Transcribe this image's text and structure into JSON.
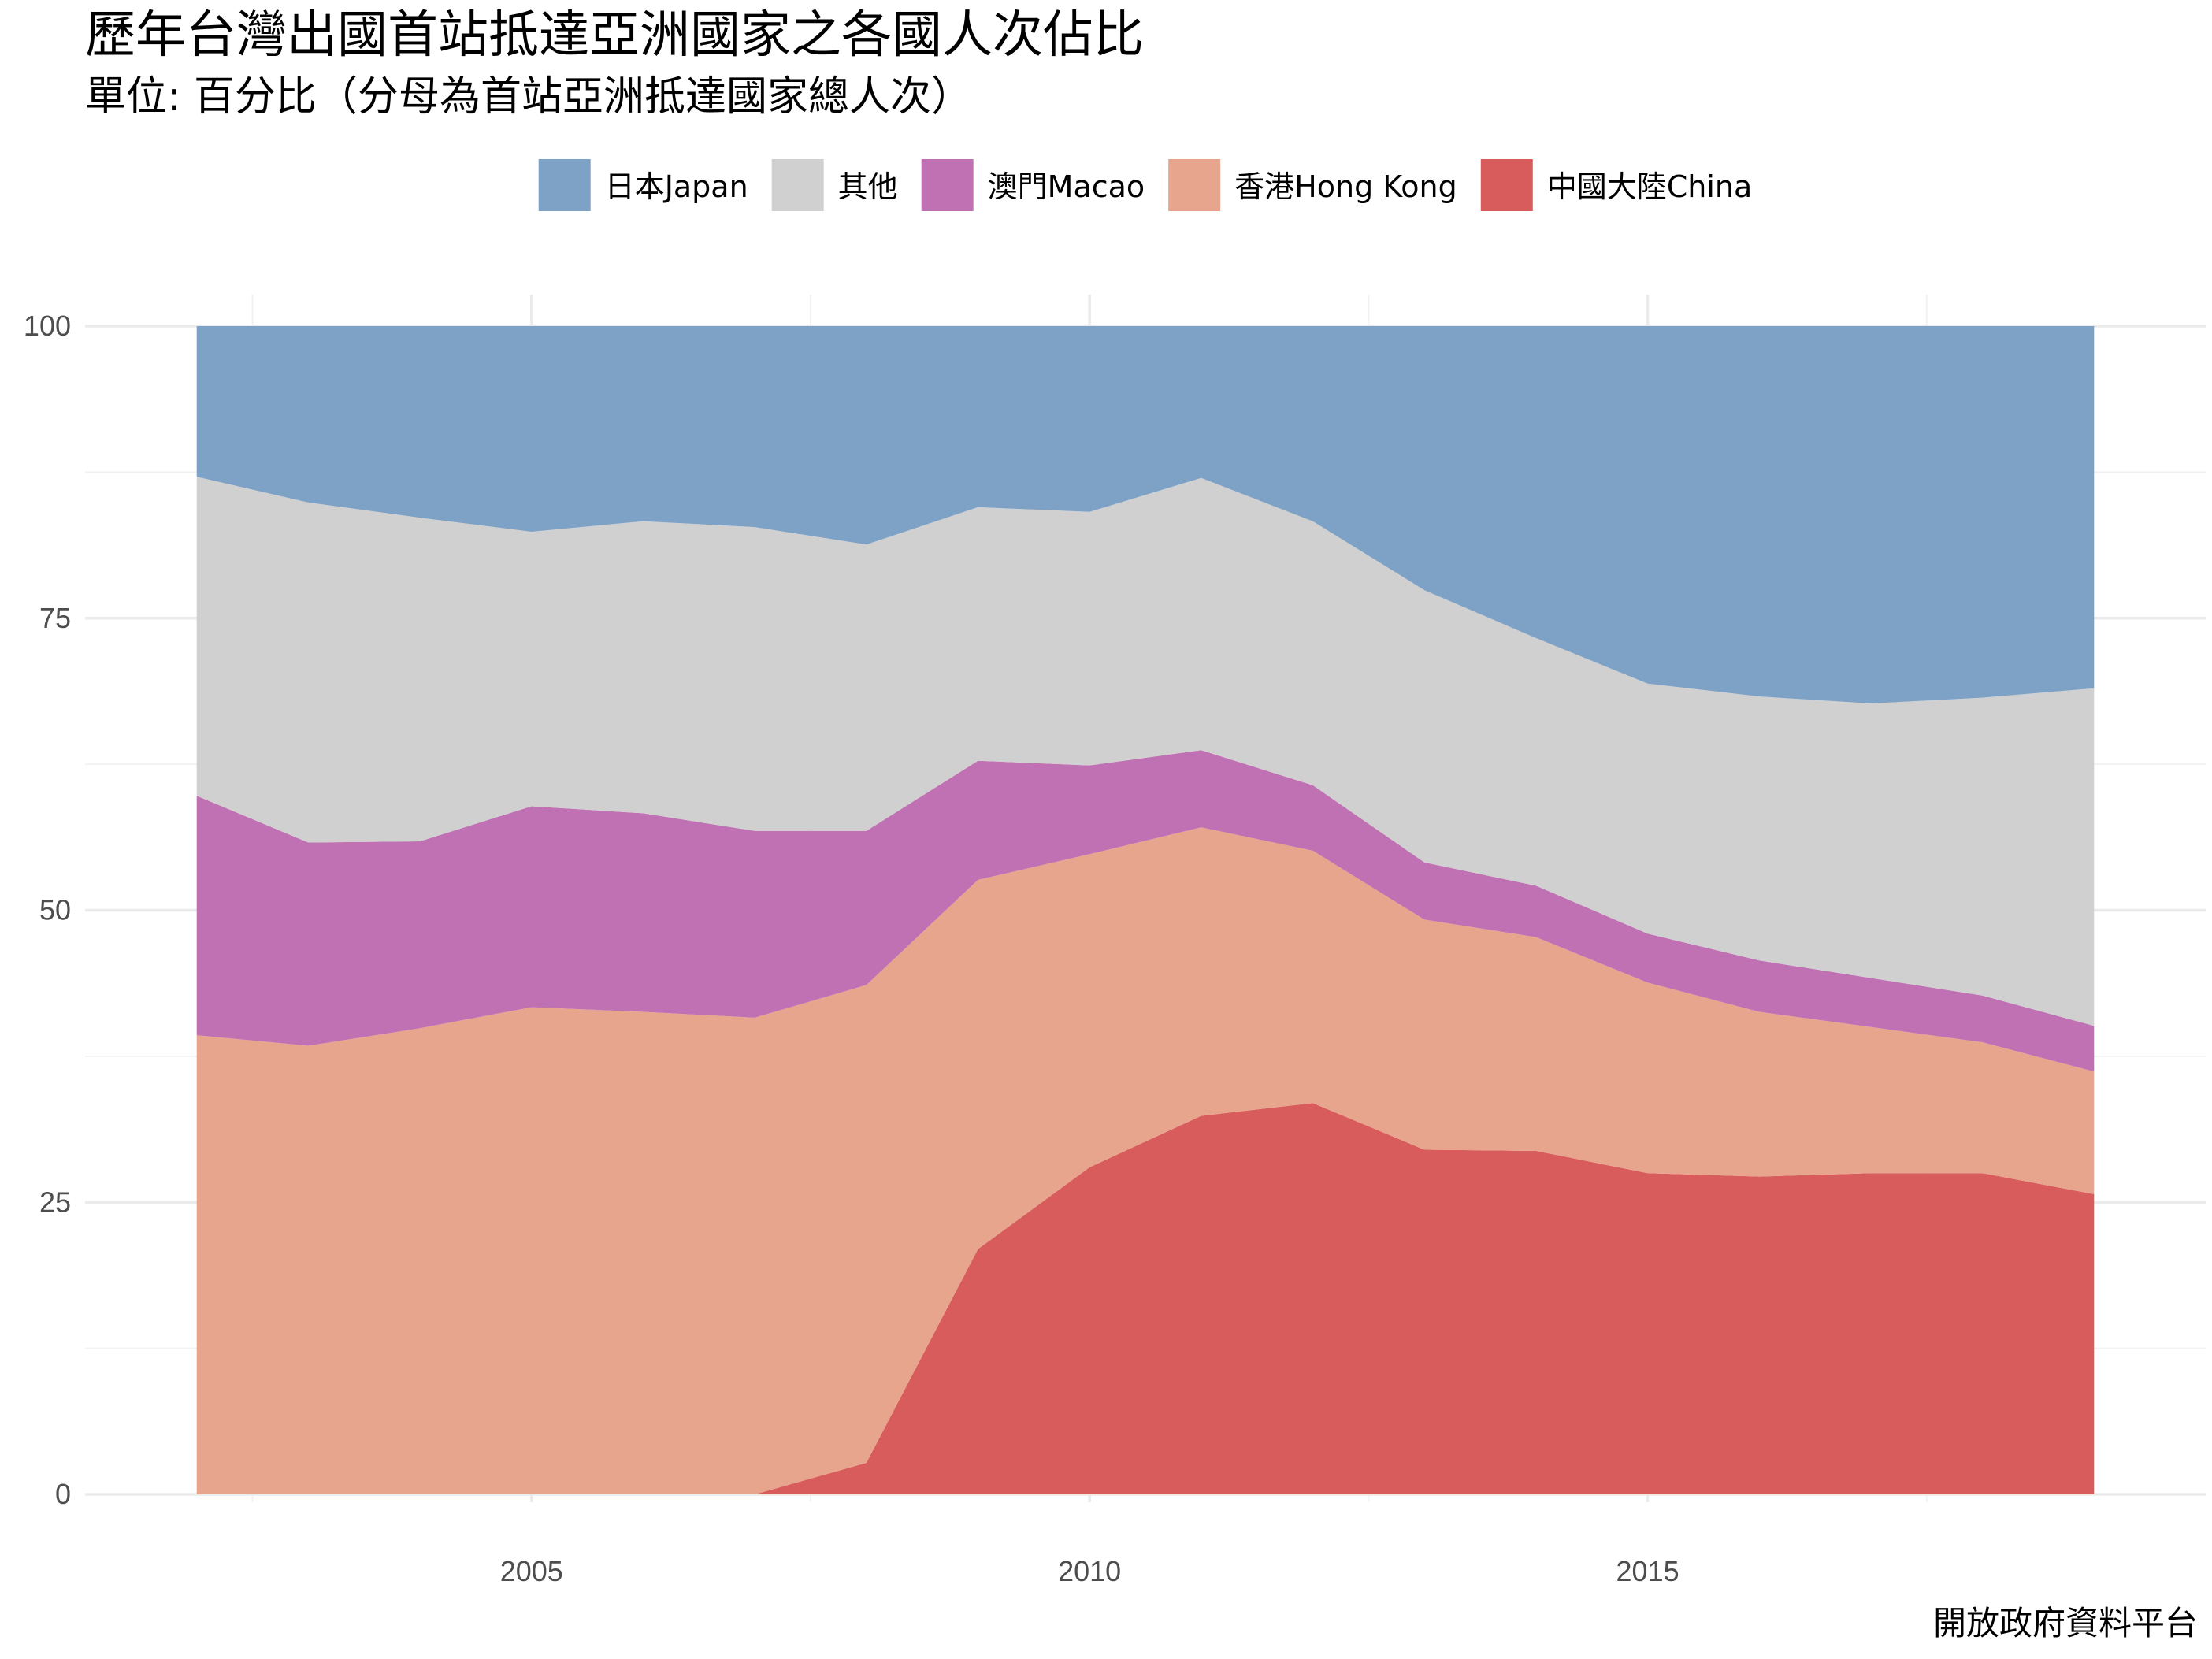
{
  "title": "歷年台灣出國首站抵達亞洲國家之各國人次佔比",
  "subtitle": "單位: 百分比（分母為首站亞洲抵達國家總人次）",
  "caption": "開放政府資料平台",
  "legend": [
    {
      "key": "japan",
      "label": "日本Japan",
      "color": "#7EA1C6"
    },
    {
      "key": "other",
      "label": "其他",
      "color": "#D0D0D0"
    },
    {
      "key": "macao",
      "label": "澳門Macao",
      "color": "#C071B3"
    },
    {
      "key": "hongkong",
      "label": "香港Hong Kong",
      "color": "#E7A58E"
    },
    {
      "key": "china",
      "label": "中國大陸China",
      "color": "#D95C5C"
    }
  ],
  "chart_data": {
    "type": "area",
    "stacked": true,
    "title": "歷年台灣出國首站抵達亞洲國家之各國人次佔比",
    "subtitle": "單位: 百分比（分母為首站亞洲抵達國家總人次）",
    "xlabel": "",
    "ylabel": "",
    "x": [
      2002,
      2003,
      2004,
      2005,
      2006,
      2007,
      2008,
      2009,
      2010,
      2011,
      2012,
      2013,
      2014,
      2015,
      2016,
      2017,
      2018,
      2019
    ],
    "xlim": [
      2001,
      2020
    ],
    "ylim": [
      0,
      100
    ],
    "xticks": [
      "2005",
      "2010",
      "2015"
    ],
    "yticks": [
      "0",
      "25",
      "50",
      "75",
      "100"
    ],
    "stack_order_bottom_to_top": [
      "china",
      "hongkong",
      "macao",
      "other",
      "japan"
    ],
    "series": [
      {
        "key": "china",
        "name": "中國大陸China",
        "color": "#D95C5C",
        "values": [
          0,
          0,
          0,
          0,
          0,
          0,
          2.7,
          21.0,
          28.0,
          32.4,
          33.5,
          29.5,
          29.4,
          27.5,
          27.2,
          27.5,
          27.5,
          25.7
        ]
      },
      {
        "key": "hongkong",
        "name": "香港Hong Kong",
        "color": "#E7A58E",
        "values": [
          39.3,
          38.4,
          39.9,
          41.7,
          41.3,
          40.8,
          40.9,
          31.6,
          26.8,
          24.7,
          21.6,
          19.7,
          18.3,
          16.3,
          14.1,
          12.5,
          11.2,
          10.5
        ]
      },
      {
        "key": "macao",
        "name": "澳門Macao",
        "color": "#C071B3",
        "values": [
          20.5,
          17.4,
          16.0,
          17.2,
          17.0,
          16.0,
          13.2,
          10.2,
          7.6,
          6.6,
          5.6,
          4.9,
          4.4,
          4.2,
          4.4,
          4.2,
          4.0,
          3.9
        ]
      },
      {
        "key": "other",
        "name": "其他",
        "color": "#D0D0D0",
        "values": [
          27.3,
          29.1,
          27.7,
          23.5,
          25.0,
          26.0,
          24.5,
          21.7,
          21.7,
          23.3,
          22.6,
          23.3,
          21.2,
          21.4,
          22.6,
          23.5,
          25.5,
          28.9
        ]
      },
      {
        "key": "japan",
        "name": "日本Japan",
        "color": "#7EA1C6",
        "values": [
          12.9,
          15.1,
          16.4,
          17.6,
          16.7,
          17.2,
          18.7,
          15.5,
          15.9,
          13.0,
          16.7,
          22.6,
          26.7,
          30.6,
          31.7,
          32.3,
          31.8,
          31.0
        ]
      }
    ]
  }
}
